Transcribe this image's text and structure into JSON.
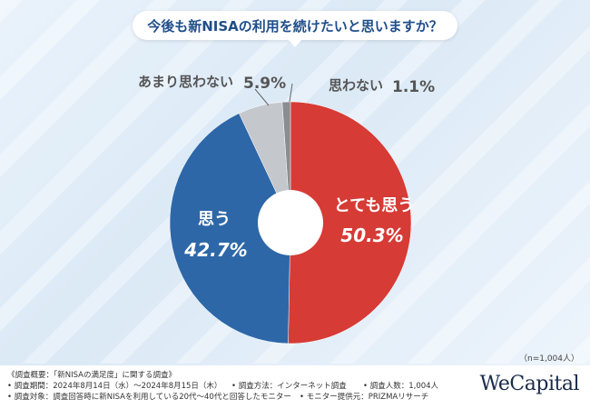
{
  "title": "今後も新NISAの利用を続けたいと思いますか？",
  "sample": "（n=1,004人）",
  "chart_data": {
    "type": "pie",
    "title": "今後も新NISAの利用を続けたいと思いますか？",
    "slices": [
      {
        "label": "とても思う",
        "value": 50.3,
        "value_label": "50.3%",
        "color": "#d63b36"
      },
      {
        "label": "思う",
        "value": 42.7,
        "value_label": "42.7%",
        "color": "#2d67a8"
      },
      {
        "label": "あまり思わない",
        "value": 5.9,
        "value_label": "5.9%",
        "color": "#c4c7cb"
      },
      {
        "label": "思わない",
        "value": 1.1,
        "value_label": "1.1%",
        "color": "#8a8d91"
      }
    ]
  },
  "footer": {
    "line1": "《調査概要：「新NISAの満足度」に関する調査》",
    "period": "• 調査期間：2024年8月14日（水）～2024年8月15日（木）",
    "method": "• 調査方法：インターネット調査",
    "count": "• 調査人数：1,004人",
    "target": "• 調査対象：調査回答時に新NISAを利用している20代～40代と回答したモニター",
    "provider": "• モニター提供元：PRIZMAリサーチ"
  },
  "logo": "WeCapital"
}
